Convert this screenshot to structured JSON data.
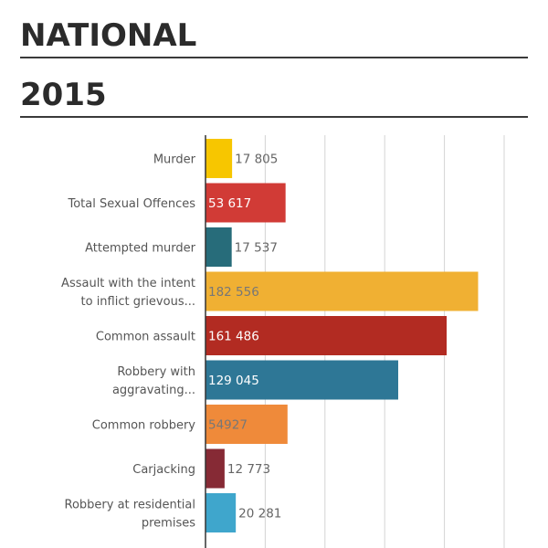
{
  "header": {
    "title": "NATIONAL",
    "subtitle": "2015"
  },
  "chart_data": {
    "type": "bar",
    "orientation": "horizontal",
    "categories": [
      "Murder",
      "Total Sexual Offences",
      "Attempted murder",
      "Assault with the intent to inflict grievous...",
      "Common assault",
      "Robbery with aggravating...",
      "Common robbery",
      "Carjacking",
      "Robbery at residential premises"
    ],
    "category_lines": [
      [
        "Murder"
      ],
      [
        "Total Sexual Offences"
      ],
      [
        "Attempted murder"
      ],
      [
        "Assault with the intent",
        "to inflict grievous..."
      ],
      [
        "Common assault"
      ],
      [
        "Robbery with",
        "aggravating..."
      ],
      [
        "Common robbery"
      ],
      [
        "Carjacking"
      ],
      [
        "Robbery at residential",
        "premises"
      ]
    ],
    "values": [
      17805,
      53617,
      17537,
      182556,
      161486,
      129045,
      54927,
      12773,
      20281
    ],
    "value_labels": [
      "17 805",
      "53 617",
      "17 537",
      "182 556",
      "161 486",
      "129 045",
      "54927",
      "12 773",
      "20 281"
    ],
    "colors": [
      "#f7c600",
      "#d13b36",
      "#276c7a",
      "#f0b033",
      "#b22b22",
      "#2e7796",
      "#ef8a3a",
      "#862a35",
      "#3fa6cc"
    ],
    "label_colors": [
      "#666666",
      "#ffffff",
      "#666666",
      "#777777",
      "#ffffff",
      "#ffffff",
      "#777777",
      "#666666",
      "#666666"
    ],
    "xlim": [
      0,
      200000
    ],
    "grid": true,
    "gridline_step": 40000
  }
}
